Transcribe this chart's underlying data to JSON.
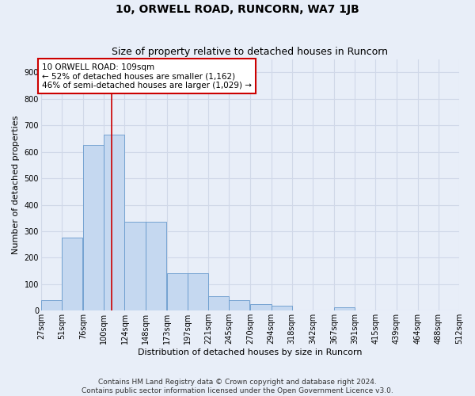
{
  "title": "10, ORWELL ROAD, RUNCORN, WA7 1JB",
  "subtitle": "Size of property relative to detached houses in Runcorn",
  "xlabel": "Distribution of detached houses by size in Runcorn",
  "ylabel": "Number of detached properties",
  "bins": [
    "27sqm",
    "51sqm",
    "76sqm",
    "100sqm",
    "124sqm",
    "148sqm",
    "173sqm",
    "197sqm",
    "221sqm",
    "245sqm",
    "270sqm",
    "294sqm",
    "318sqm",
    "342sqm",
    "367sqm",
    "391sqm",
    "415sqm",
    "439sqm",
    "464sqm",
    "488sqm",
    "512sqm"
  ],
  "bin_edges": [
    27,
    51,
    76,
    100,
    124,
    148,
    173,
    197,
    221,
    245,
    270,
    294,
    318,
    342,
    367,
    391,
    415,
    439,
    464,
    488,
    512
  ],
  "values": [
    40,
    275,
    625,
    665,
    335,
    335,
    140,
    140,
    55,
    40,
    25,
    18,
    0,
    0,
    12,
    0,
    0,
    0,
    0,
    0
  ],
  "bar_color": "#c5d8f0",
  "bar_edge_color": "#6699cc",
  "background_color": "#e8eef8",
  "grid_color": "#d0d8e8",
  "vline_x": 109,
  "vline_color": "#cc0000",
  "annotation_text": "10 ORWELL ROAD: 109sqm\n← 52% of detached houses are smaller (1,162)\n46% of semi-detached houses are larger (1,029) →",
  "annotation_box_facecolor": "#ffffff",
  "annotation_box_edgecolor": "#cc0000",
  "ylim": [
    0,
    950
  ],
  "yticks": [
    0,
    100,
    200,
    300,
    400,
    500,
    600,
    700,
    800,
    900
  ],
  "footer_text": "Contains HM Land Registry data © Crown copyright and database right 2024.\nContains public sector information licensed under the Open Government Licence v3.0.",
  "title_fontsize": 10,
  "subtitle_fontsize": 9,
  "axis_label_fontsize": 8,
  "tick_fontsize": 7,
  "annotation_fontsize": 7.5,
  "footer_fontsize": 6.5
}
